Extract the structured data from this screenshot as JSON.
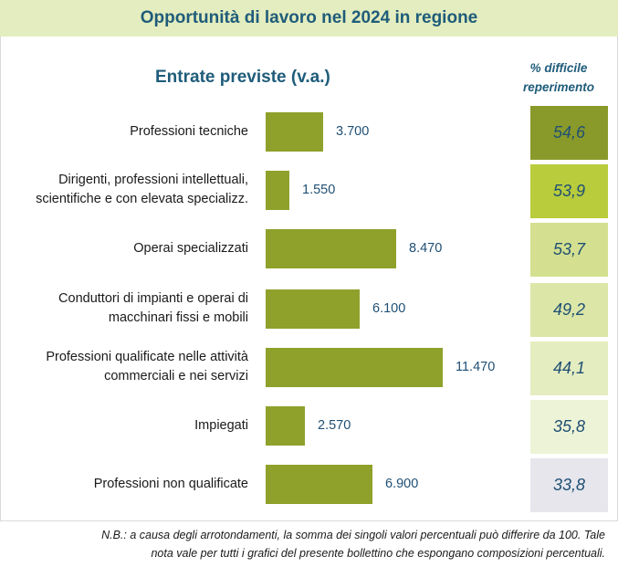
{
  "title": "Opportunità di lavoro nel 2024 in regione",
  "chart_data": {
    "type": "bar",
    "orientation": "horizontal",
    "title": "Entrate previste (v.a.)",
    "pct_header_line1": "% difficile",
    "pct_header_line2": "reperimento",
    "categories": [
      [
        "Professioni tecniche"
      ],
      [
        "Dirigenti, professioni intellettuali,",
        "scientifiche e con elevata specializz."
      ],
      [
        "Operai specializzati"
      ],
      [
        "Conduttori di impianti e operai di",
        "macchinari fissi e mobili"
      ],
      [
        "Professioni qualificate nelle attività",
        "commerciali e nei servizi"
      ],
      [
        "Impiegati"
      ],
      [
        "Professioni non qualificate"
      ]
    ],
    "values": [
      3700,
      1550,
      8470,
      6100,
      11470,
      2570,
      6900
    ],
    "value_labels": [
      "3.700",
      "1.550",
      "8.470",
      "6.100",
      "11.470",
      "2.570",
      "6.900"
    ],
    "pct_difficile": [
      "54,6",
      "53,9",
      "53,7",
      "49,2",
      "44,1",
      "35,8",
      "33,8"
    ],
    "pct_colors": [
      "#8a9a2a",
      "#b8cc3c",
      "#d4e08f",
      "#dbe6a7",
      "#e4edc0",
      "#edf3d6",
      "#e6e6ec"
    ],
    "bar_color": "#8fa12b",
    "xlim": [
      0,
      11470
    ]
  },
  "note_line1": "N.B.: a causa degli arrotondamenti, la somma dei singoli valori percentuali può differire da 100. Tale",
  "note_line2": "nota vale per tutti i grafici del presente bollettino che espongano composizioni percentuali."
}
